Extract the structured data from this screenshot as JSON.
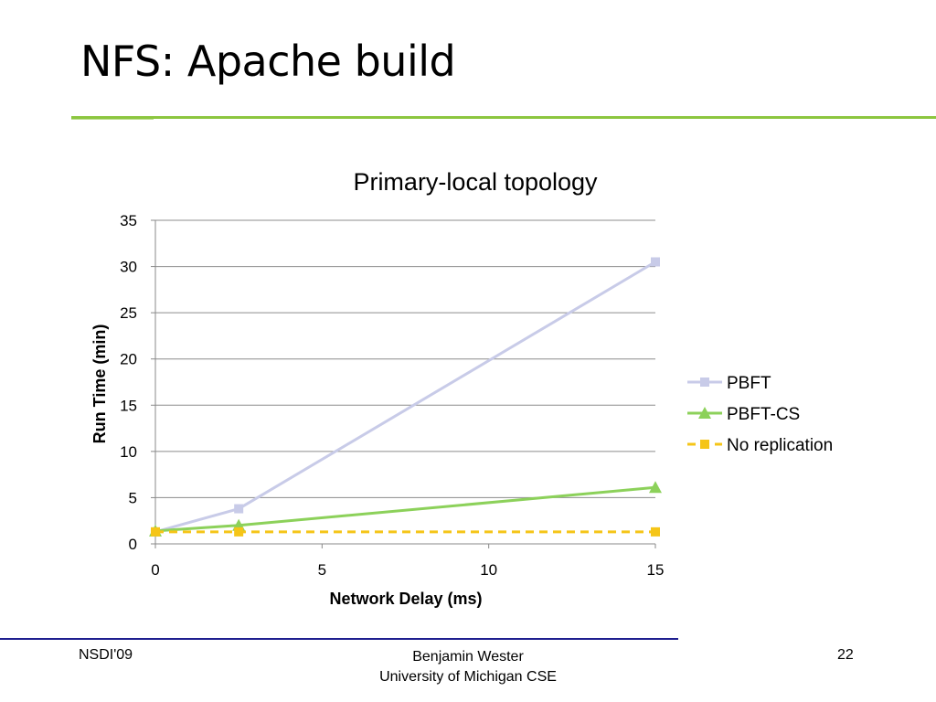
{
  "slide": {
    "title": "NFS: Apache build"
  },
  "footer": {
    "left": "NSDI'09",
    "center_line1": "Benjamin Wester",
    "center_line2": "University of Michigan CSE",
    "page_number": "22"
  },
  "chart_data": {
    "type": "line",
    "title": "Primary-local topology",
    "xlabel": "Network Delay (ms)",
    "ylabel": "Run Time (min)",
    "xlim": [
      0,
      15
    ],
    "ylim": [
      0,
      35
    ],
    "xticks": [
      0,
      5,
      10,
      15
    ],
    "yticks": [
      0,
      5,
      10,
      15,
      20,
      25,
      30,
      35
    ],
    "grid": "horizontal",
    "legend_position": "right",
    "series": [
      {
        "name": "PBFT",
        "color": "#c8cbe8",
        "marker": "square",
        "dashed": false,
        "x": [
          0,
          2.5,
          15
        ],
        "y": [
          1.3,
          3.8,
          30.5
        ]
      },
      {
        "name": "PBFT-CS",
        "color": "#8cd15a",
        "marker": "triangle",
        "dashed": false,
        "x": [
          0,
          2.5,
          15
        ],
        "y": [
          1.4,
          2.0,
          6.1
        ]
      },
      {
        "name": "No replication",
        "color": "#f5c518",
        "marker": "square",
        "dashed": true,
        "x": [
          0,
          2.5,
          15
        ],
        "y": [
          1.3,
          1.3,
          1.3
        ]
      }
    ]
  }
}
